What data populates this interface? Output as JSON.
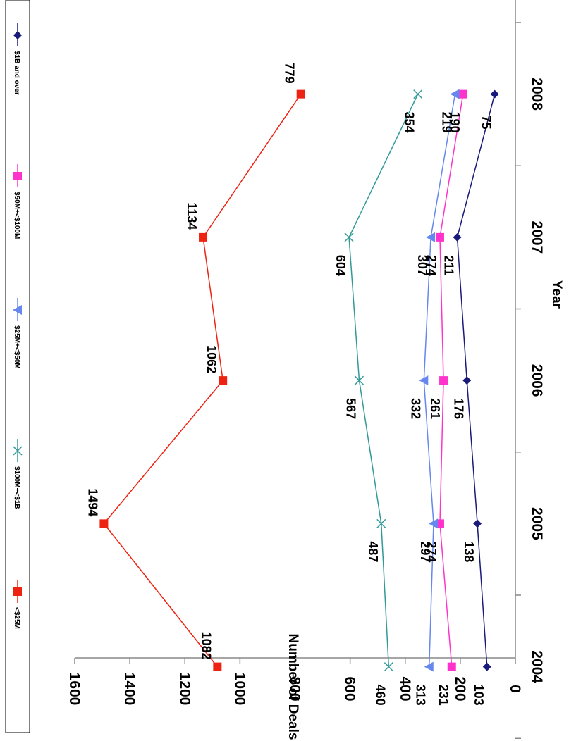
{
  "chart_data": {
    "type": "line",
    "title": "",
    "xlabel": "Year",
    "ylabel": "Number of Deals",
    "categories": [
      "2004",
      "2005",
      "2006",
      "2007",
      "2008"
    ],
    "ylim": [
      0,
      1600
    ],
    "y_ticks": [
      "0",
      "200",
      "400",
      "600",
      "800",
      "1000",
      "1200",
      "1400",
      "1600"
    ],
    "orientation": "rotated 90 degrees clockwise",
    "grid": false,
    "legend_position": "top",
    "series": [
      {
        "name": "$1B and over",
        "values": [
          103,
          138,
          176,
          211,
          75
        ],
        "labels": [
          "103",
          "138",
          "176",
          "211",
          "75"
        ],
        "color": "#1a1a7a",
        "marker": "diamond"
      },
      {
        "name": "$50M+<$100M",
        "values": [
          231,
          274,
          261,
          274,
          190
        ],
        "labels": [
          "231",
          "274",
          "261",
          "274",
          "190"
        ],
        "color": "#ff33cc",
        "marker": "square"
      },
      {
        "name": "$25M+<$50M",
        "values": [
          313,
          297,
          332,
          307,
          219
        ],
        "labels": [
          "313",
          "297",
          "332",
          "307",
          "219"
        ],
        "color": "#6688ee",
        "marker": "triangle"
      },
      {
        "name": "$100M+<$1B",
        "values": [
          460,
          487,
          567,
          604,
          354
        ],
        "labels": [
          "460",
          "487",
          "567",
          "604",
          "354"
        ],
        "color": "#339999",
        "marker": "x"
      },
      {
        "name": "<$25M",
        "values": [
          1082,
          1494,
          1062,
          1134,
          779
        ],
        "labels": [
          "1082",
          "1494",
          "1062",
          "1134",
          "779"
        ],
        "color": "#ee2211",
        "marker": "square"
      }
    ]
  }
}
